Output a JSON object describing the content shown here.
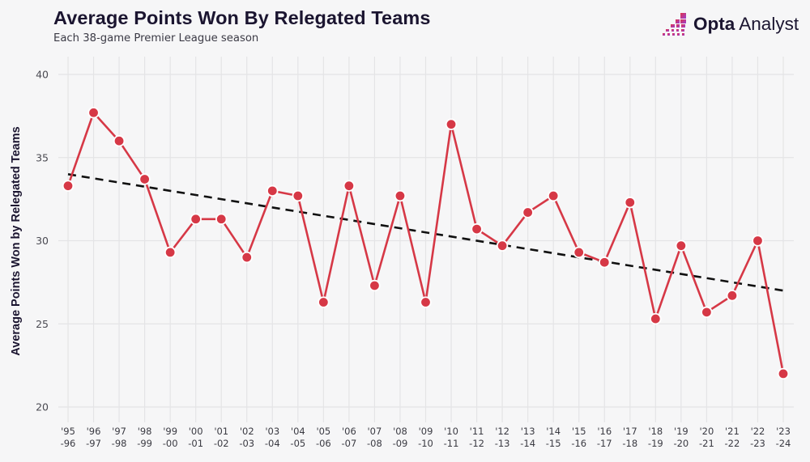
{
  "header": {
    "title": "Average Points Won By Relegated Teams",
    "subtitle": "Each 38-game Premier League season"
  },
  "logo": {
    "brand_bold": "Opta",
    "brand_light": "Analyst",
    "icon": "pixel-bars-icon"
  },
  "colors": {
    "series": "#d63846",
    "trend": "#111111",
    "grid": "#e4e4e6",
    "background": "#f6f6f7",
    "title": "#1b1530",
    "logo_gradient": [
      "#e0334a",
      "#9b3fd3"
    ]
  },
  "chart_data": {
    "type": "line",
    "title": "Average Points Won By Relegated Teams",
    "subtitle": "Each 38-game Premier League season",
    "xlabel": "",
    "ylabel": "Average Points Won by Relegated Teams",
    "ylim": [
      20,
      40
    ],
    "yticks": [
      20,
      25,
      30,
      35,
      40
    ],
    "grid": true,
    "legend": "none",
    "categories": [
      [
        "'95",
        "-96"
      ],
      [
        "'96",
        "-97"
      ],
      [
        "'97",
        "-98"
      ],
      [
        "'98",
        "-99"
      ],
      [
        "'99",
        "-00"
      ],
      [
        "'00",
        "-01"
      ],
      [
        "'01",
        "-02"
      ],
      [
        "'02",
        "-03"
      ],
      [
        "'03",
        "-04"
      ],
      [
        "'04",
        "-05"
      ],
      [
        "'05",
        "-06"
      ],
      [
        "'06",
        "-07"
      ],
      [
        "'07",
        "-08"
      ],
      [
        "'08",
        "-09"
      ],
      [
        "'09",
        "-10"
      ],
      [
        "'10",
        "-11"
      ],
      [
        "'11",
        "-12"
      ],
      [
        "'12",
        "-13"
      ],
      [
        "'13",
        "-14"
      ],
      [
        "'14",
        "-15"
      ],
      [
        "'15",
        "-16"
      ],
      [
        "'16",
        "-17"
      ],
      [
        "'17",
        "-18"
      ],
      [
        "'18",
        "-19"
      ],
      [
        "'19",
        "-20"
      ],
      [
        "'20",
        "-21"
      ],
      [
        "'21",
        "-22"
      ],
      [
        "'22",
        "-23"
      ],
      [
        "'23",
        "-24"
      ]
    ],
    "series": [
      {
        "name": "Average points",
        "values": [
          33.3,
          37.7,
          36.0,
          33.7,
          29.3,
          31.3,
          31.3,
          29.0,
          33.0,
          32.7,
          26.3,
          33.3,
          27.3,
          32.7,
          26.3,
          37.0,
          30.7,
          29.7,
          31.7,
          32.7,
          29.3,
          28.7,
          32.3,
          25.3,
          29.7,
          25.7,
          26.7,
          30.0,
          22.0
        ]
      }
    ],
    "trendline": {
      "name": "Linear trend",
      "start": 34.0,
      "end": 27.0,
      "style": "dashed"
    }
  }
}
